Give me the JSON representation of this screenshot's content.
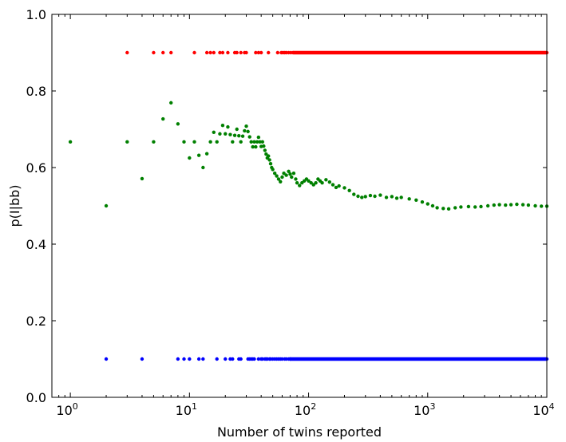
{
  "chart_data": {
    "type": "scatter",
    "title": "",
    "xlabel": "Number of twins reported",
    "ylabel": "p(I|bb)",
    "xscale": "log",
    "xlim": [
      0.7,
      10000
    ],
    "ylim": [
      0.0,
      1.0
    ],
    "grid": false,
    "x_ticks": [
      {
        "value": 1,
        "base": "10",
        "exp": "0"
      },
      {
        "value": 10,
        "base": "10",
        "exp": "1"
      },
      {
        "value": 100,
        "base": "10",
        "exp": "2"
      },
      {
        "value": 1000,
        "base": "10",
        "exp": "3"
      },
      {
        "value": 10000,
        "base": "10",
        "exp": "4"
      }
    ],
    "y_ticks": [
      {
        "value": 0.0,
        "label": "0.0"
      },
      {
        "value": 0.2,
        "label": "0.2"
      },
      {
        "value": 0.4,
        "label": "0.4"
      },
      {
        "value": 0.6,
        "label": "0.6"
      },
      {
        "value": 0.8,
        "label": "0.8"
      },
      {
        "value": 1.0,
        "label": "1.0"
      }
    ],
    "series": [
      {
        "color": "#ff0000",
        "constant_y": 0.9,
        "x": [
          3,
          5,
          6,
          7,
          11,
          14,
          15,
          16,
          18,
          19,
          21,
          24,
          25,
          27,
          29,
          30,
          36,
          38,
          40,
          46,
          55,
          59,
          61,
          63,
          65,
          68,
          71,
          74
        ]
      },
      {
        "color": "#008000",
        "points": [
          [
            1,
            0.667
          ],
          [
            2,
            0.5
          ],
          [
            3,
            0.667
          ],
          [
            4,
            0.571
          ],
          [
            5,
            0.667
          ],
          [
            6,
            0.727
          ],
          [
            7,
            0.769
          ],
          [
            8,
            0.714
          ],
          [
            9,
            0.667
          ],
          [
            10,
            0.625
          ],
          [
            11,
            0.667
          ],
          [
            12,
            0.632
          ],
          [
            13,
            0.6
          ],
          [
            14,
            0.636
          ],
          [
            15,
            0.667
          ],
          [
            16,
            0.692
          ],
          [
            17,
            0.667
          ],
          [
            18,
            0.688
          ],
          [
            19,
            0.71
          ],
          [
            20,
            0.688
          ],
          [
            21,
            0.706
          ],
          [
            22,
            0.686
          ],
          [
            23,
            0.667
          ],
          [
            24,
            0.684
          ],
          [
            25,
            0.7
          ],
          [
            26,
            0.683
          ],
          [
            27,
            0.667
          ],
          [
            28,
            0.682
          ],
          [
            29,
            0.696
          ],
          [
            30,
            0.708
          ],
          [
            31,
            0.694
          ],
          [
            32,
            0.68
          ],
          [
            33,
            0.667
          ],
          [
            34,
            0.654
          ],
          [
            35,
            0.667
          ],
          [
            36,
            0.654
          ],
          [
            37,
            0.667
          ],
          [
            38,
            0.679
          ],
          [
            39,
            0.667
          ],
          [
            40,
            0.655
          ],
          [
            41,
            0.667
          ],
          [
            42,
            0.656
          ],
          [
            43,
            0.645
          ],
          [
            44,
            0.635
          ],
          [
            45,
            0.625
          ],
          [
            46,
            0.63
          ],
          [
            47,
            0.62
          ],
          [
            48,
            0.61
          ],
          [
            49,
            0.6
          ],
          [
            50,
            0.595
          ],
          [
            52,
            0.585
          ],
          [
            54,
            0.578
          ],
          [
            56,
            0.57
          ],
          [
            58,
            0.563
          ],
          [
            60,
            0.575
          ],
          [
            62,
            0.585
          ],
          [
            65,
            0.58
          ],
          [
            68,
            0.59
          ],
          [
            70,
            0.583
          ],
          [
            72,
            0.575
          ],
          [
            75,
            0.585
          ],
          [
            78,
            0.57
          ],
          [
            80,
            0.56
          ],
          [
            84,
            0.553
          ],
          [
            88,
            0.56
          ],
          [
            92,
            0.565
          ],
          [
            96,
            0.57
          ],
          [
            100,
            0.565
          ],
          [
            105,
            0.56
          ],
          [
            110,
            0.555
          ],
          [
            115,
            0.56
          ],
          [
            120,
            0.57
          ],
          [
            125,
            0.565
          ],
          [
            130,
            0.56
          ],
          [
            140,
            0.568
          ],
          [
            150,
            0.562
          ],
          [
            160,
            0.555
          ],
          [
            170,
            0.548
          ],
          [
            180,
            0.552
          ],
          [
            200,
            0.547
          ],
          [
            220,
            0.54
          ],
          [
            240,
            0.53
          ],
          [
            260,
            0.525
          ],
          [
            280,
            0.522
          ],
          [
            300,
            0.524
          ],
          [
            330,
            0.527
          ],
          [
            360,
            0.525
          ],
          [
            400,
            0.528
          ],
          [
            450,
            0.522
          ],
          [
            500,
            0.524
          ],
          [
            550,
            0.52
          ],
          [
            600,
            0.522
          ],
          [
            700,
            0.518
          ],
          [
            800,
            0.515
          ],
          [
            900,
            0.51
          ],
          [
            1000,
            0.505
          ],
          [
            1100,
            0.5
          ],
          [
            1200,
            0.495
          ],
          [
            1350,
            0.493
          ],
          [
            1500,
            0.492
          ],
          [
            1700,
            0.495
          ],
          [
            1900,
            0.497
          ],
          [
            2200,
            0.498
          ],
          [
            2500,
            0.497
          ],
          [
            2800,
            0.498
          ],
          [
            3200,
            0.5
          ],
          [
            3600,
            0.502
          ],
          [
            4000,
            0.503
          ],
          [
            4500,
            0.502
          ],
          [
            5000,
            0.503
          ],
          [
            5600,
            0.504
          ],
          [
            6300,
            0.503
          ],
          [
            7000,
            0.502
          ],
          [
            8000,
            0.5
          ],
          [
            9000,
            0.499
          ],
          [
            10000,
            0.499
          ]
        ]
      },
      {
        "color": "#0000ff",
        "constant_y": 0.1,
        "x": [
          2,
          4,
          8,
          9,
          10,
          12,
          13,
          17,
          20,
          22,
          23,
          26,
          27,
          31,
          32,
          33,
          34,
          35,
          38,
          40,
          41,
          43,
          44,
          45,
          47,
          48,
          50,
          52,
          54,
          56,
          58,
          60,
          63,
          65,
          68,
          70
        ]
      }
    ],
    "dense_ranges": [
      {
        "series": 0,
        "from": 75,
        "to": 10000
      },
      {
        "series": 2,
        "from": 70,
        "to": 10000
      }
    ]
  }
}
